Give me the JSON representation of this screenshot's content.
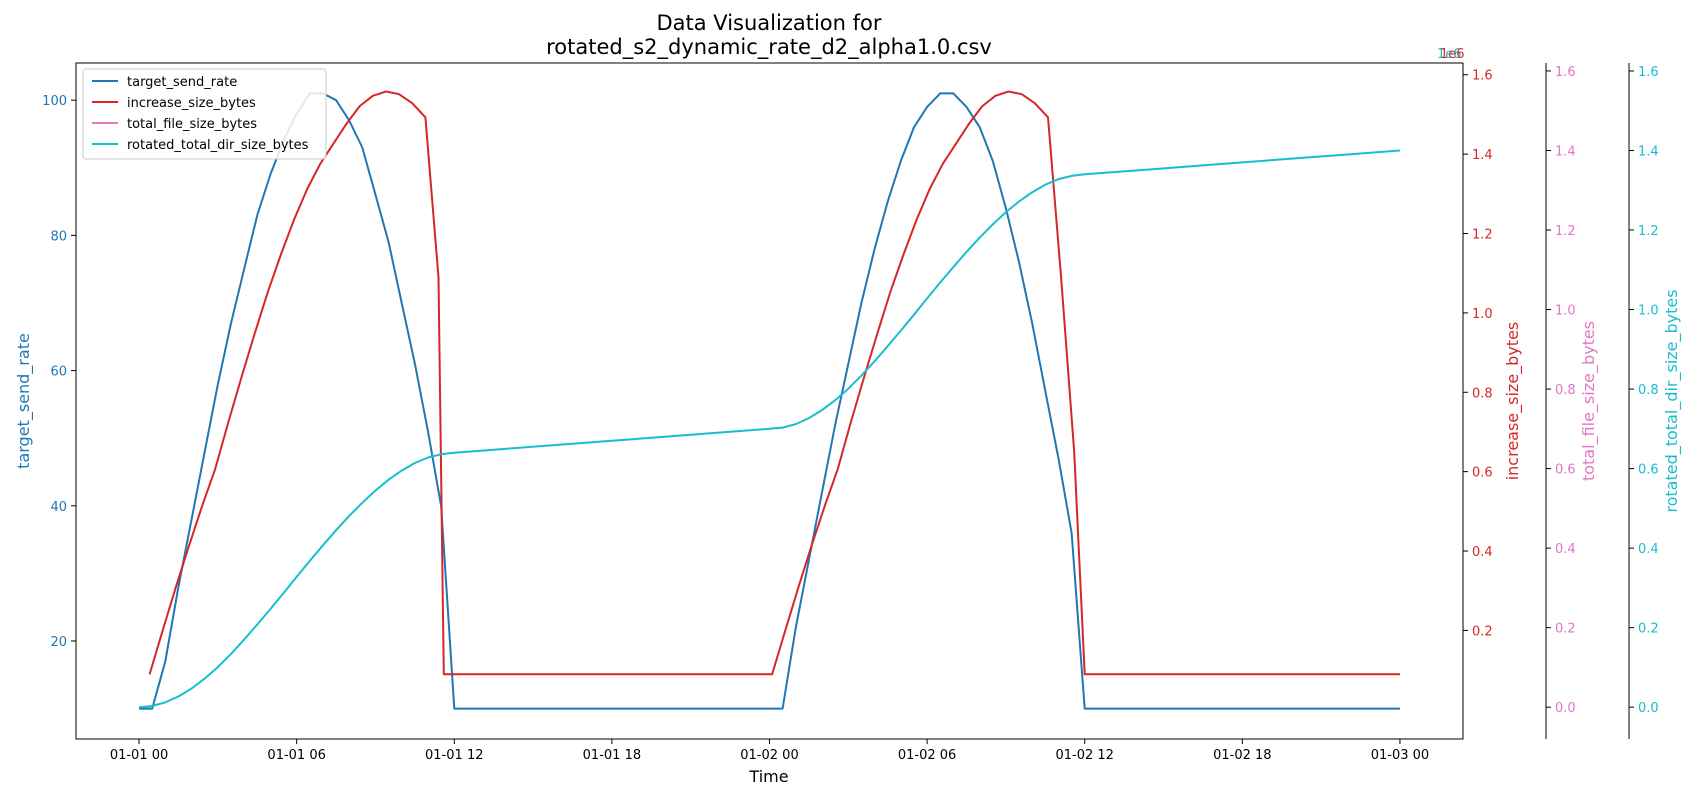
{
  "chart_data": {
    "type": "line",
    "title_lines": [
      "Data Visualization for",
      "rotated_s2_dynamic_rate_d2_alpha1.0.csv"
    ],
    "xlabel": "Time",
    "x_ticks": [
      "01-01 00",
      "01-01 06",
      "01-01 12",
      "01-01 18",
      "01-02 00",
      "01-02 06",
      "01-02 12",
      "01-02 18",
      "01-03 00"
    ],
    "xlim_hours": [
      -2.4,
      50.4
    ],
    "grid": false,
    "legend_position": "upper-left",
    "axes": {
      "left": {
        "label": "target_send_rate",
        "color": "#1f77b4",
        "ylim": [
          5.5,
          105.5
        ],
        "ticks": [
          20,
          40,
          60,
          80,
          100
        ],
        "tick_labels": [
          "20",
          "40",
          "60",
          "80",
          "100"
        ],
        "offset_text": ""
      },
      "right1": {
        "label": "increase_size_bytes",
        "color": "#d62728",
        "ylim": [
          -0.0736,
          1.6296
        ],
        "ticks": [
          0.2,
          0.4,
          0.6,
          0.8,
          1.0,
          1.2,
          1.4,
          1.6
        ],
        "tick_labels": [
          "0.2",
          "0.4",
          "0.6",
          "0.8",
          "1.0",
          "1.2",
          "1.4",
          "1.6"
        ],
        "offset_text": "1e6"
      },
      "right2": {
        "label": "total_file_size_bytes",
        "color": "#e377c2",
        "ylim": [
          -0.08,
          1.62
        ],
        "ticks": [
          0.0,
          0.2,
          0.4,
          0.6,
          0.8,
          1.0,
          1.2,
          1.4,
          1.6
        ],
        "tick_labels": [
          "0.0",
          "0.2",
          "0.4",
          "0.6",
          "0.8",
          "1.0",
          "1.2",
          "1.4",
          "1.6"
        ],
        "offset_text": ""
      },
      "right3": {
        "label": "rotated_total_dir_size_bytes",
        "color": "#17becf",
        "ylim": [
          -0.08,
          1.62
        ],
        "ticks": [
          0.0,
          0.2,
          0.4,
          0.6,
          0.8,
          1.0,
          1.2,
          1.4,
          1.6
        ],
        "tick_labels": [
          "0.0",
          "0.2",
          "0.4",
          "0.6",
          "0.8",
          "1.0",
          "1.2",
          "1.4",
          "1.6"
        ],
        "offset_text": "1e6"
      }
    },
    "series": [
      {
        "name": "target_send_rate",
        "axis": "left",
        "color": "#1f77b4",
        "x_hours": [
          0,
          0.5,
          1,
          1.5,
          2,
          2.5,
          3,
          3.5,
          4,
          4.5,
          5,
          5.5,
          6,
          6.5,
          7,
          7.5,
          8,
          8.5,
          9,
          9.5,
          10,
          10.5,
          11,
          11.5,
          12,
          24.5,
          25,
          25.5,
          26,
          26.5,
          27,
          27.5,
          28,
          28.5,
          29,
          29.5,
          30,
          30.5,
          31,
          31.5,
          32,
          32.5,
          33,
          33.5,
          34,
          34.5,
          35,
          35.5,
          36,
          48
        ],
        "y": [
          10,
          10,
          17,
          28,
          38,
          48,
          58,
          67,
          75,
          83,
          89,
          94,
          98,
          101,
          101,
          100,
          97,
          93,
          86,
          79,
          70,
          61,
          51,
          40,
          10,
          10,
          22,
          32,
          42,
          52,
          61,
          70,
          78,
          85,
          91,
          96,
          99,
          101,
          101,
          99,
          96,
          91,
          84,
          76,
          67,
          57,
          47,
          36,
          10,
          10
        ]
      },
      {
        "name": "increase_size_bytes",
        "axis": "right1",
        "color": "#d62728",
        "x_hours": [
          0.4,
          0.9,
          1.4,
          1.9,
          2.4,
          2.9,
          3.4,
          3.9,
          4.4,
          4.9,
          5.4,
          5.9,
          6.4,
          6.9,
          7.4,
          7.9,
          8.4,
          8.9,
          9.4,
          9.9,
          10.4,
          10.9,
          11.4,
          11.6,
          24.1,
          24.6,
          25.1,
          25.6,
          26.1,
          26.6,
          27.1,
          27.6,
          28.1,
          28.6,
          29.1,
          29.6,
          30.1,
          30.6,
          31.1,
          31.6,
          32.1,
          32.6,
          33.1,
          33.6,
          34.1,
          34.6,
          35.1,
          35.6,
          36,
          48
        ],
        "y": [
          0.0895,
          0.1999,
          0.3087,
          0.4132,
          0.5131,
          0.607,
          0.725,
          0.838,
          0.947,
          1.0525,
          1.147,
          1.2349,
          1.3121,
          1.3759,
          1.4264,
          1.4768,
          1.5211,
          1.5469,
          1.5577,
          1.551,
          1.5283,
          1.4928,
          1.0894,
          0.0895,
          0.0895,
          0.1999,
          0.3087,
          0.4132,
          0.5131,
          0.607,
          0.725,
          0.838,
          0.947,
          1.0525,
          1.147,
          1.2349,
          1.3121,
          1.3759,
          1.4264,
          1.4768,
          1.5211,
          1.5469,
          1.5577,
          1.551,
          1.5283,
          1.4928,
          1.0894,
          0.65,
          0.0895,
          0.0895
        ]
      },
      {
        "name": "total_file_size_bytes",
        "axis": "right2",
        "color": "#e377c2",
        "x_hours": [],
        "y": []
      },
      {
        "name": "rotated_total_dir_size_bytes",
        "axis": "right3",
        "color": "#17becf",
        "x_hours": [
          0,
          0.5,
          1,
          1.5,
          2,
          2.5,
          3,
          3.5,
          4,
          4.5,
          5,
          5.5,
          6,
          6.5,
          7,
          7.5,
          8,
          8.5,
          9,
          9.5,
          10,
          10.5,
          11,
          11.5,
          12,
          14,
          16,
          18,
          20,
          22,
          24,
          24.5,
          25,
          25.5,
          26,
          26.5,
          27,
          27.5,
          28,
          28.5,
          29,
          29.5,
          30,
          30.5,
          31,
          31.5,
          32,
          32.5,
          33,
          33.5,
          34,
          34.5,
          35,
          35.5,
          36,
          38,
          40,
          42,
          44,
          46,
          48
        ],
        "y": [
          0,
          0.003,
          0.012,
          0.027,
          0.047,
          0.072,
          0.101,
          0.134,
          0.17,
          0.208,
          0.247,
          0.287,
          0.328,
          0.368,
          0.407,
          0.445,
          0.481,
          0.514,
          0.545,
          0.572,
          0.595,
          0.614,
          0.628,
          0.636,
          0.64,
          0.65,
          0.66,
          0.67,
          0.68,
          0.69,
          0.7,
          0.703,
          0.712,
          0.727,
          0.747,
          0.772,
          0.801,
          0.834,
          0.87,
          0.908,
          0.947,
          0.987,
          1.028,
          1.068,
          1.107,
          1.145,
          1.181,
          1.214,
          1.245,
          1.272,
          1.295,
          1.314,
          1.328,
          1.336,
          1.34,
          1.35,
          1.36,
          1.37,
          1.38,
          1.39,
          1.4
        ]
      }
    ]
  }
}
